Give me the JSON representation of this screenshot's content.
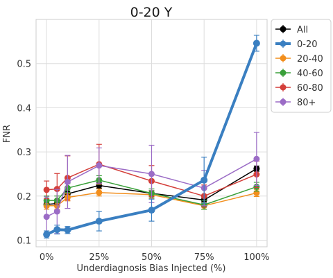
{
  "chart_data": {
    "type": "line",
    "title": "0-20 Y",
    "xlabel": "Underdiagnosis Bias Injected (%)",
    "ylabel": "FNR",
    "x": [
      0,
      5,
      10,
      25,
      50,
      75,
      100
    ],
    "x_tick_values": [
      0,
      25,
      50,
      75,
      100
    ],
    "x_tick_labels": [
      "0%",
      "25%",
      "50%",
      "75%",
      "100%"
    ],
    "xlim": [
      -5,
      105
    ],
    "ylim": [
      0.085,
      0.6
    ],
    "y_ticks": [
      0.1,
      0.2,
      0.3,
      0.4,
      0.5
    ],
    "y_tick_labels": [
      "0.1",
      "0.2",
      "0.3",
      "0.4",
      "0.5"
    ],
    "grid": true,
    "legend_position": "top-right, outside the plot area",
    "series": [
      {
        "name": "All",
        "color": "#000000",
        "emphasis": false,
        "values": [
          0.181,
          0.183,
          0.205,
          0.224,
          0.206,
          0.191,
          0.262
        ],
        "errors": [
          0.006,
          0.006,
          0.006,
          0.006,
          0.006,
          0.006,
          0.006
        ]
      },
      {
        "name": "20-40",
        "color": "#f28e1c",
        "emphasis": false,
        "values": [
          0.178,
          0.178,
          0.197,
          0.208,
          0.203,
          0.178,
          0.207
        ],
        "errors": [
          0.008,
          0.008,
          0.008,
          0.008,
          0.008,
          0.008,
          0.008
        ]
      },
      {
        "name": "40-60",
        "color": "#3aa03a",
        "emphasis": false,
        "values": [
          0.19,
          0.19,
          0.218,
          0.236,
          0.206,
          0.18,
          0.221
        ],
        "errors": [
          0.01,
          0.01,
          0.01,
          0.01,
          0.01,
          0.01,
          0.01
        ]
      },
      {
        "name": "60-80",
        "color": "#d43f3a",
        "emphasis": false,
        "values": [
          0.214,
          0.216,
          0.241,
          0.272,
          0.234,
          0.2,
          0.249
        ],
        "errors": [
          0.02,
          0.035,
          0.05,
          0.045,
          0.035,
          0.025,
          0.03
        ]
      },
      {
        "name": "80+",
        "color": "#9b6cc6",
        "emphasis": false,
        "values": [
          0.153,
          0.165,
          0.232,
          0.269,
          0.25,
          0.218,
          0.284
        ],
        "errors": [
          0.045,
          0.05,
          0.06,
          0.04,
          0.065,
          0.04,
          0.06
        ]
      },
      {
        "name": "0-20",
        "color": "#3a7fc1",
        "emphasis": true,
        "values": [
          0.113,
          0.124,
          0.123,
          0.143,
          0.168,
          0.236,
          0.546
        ],
        "errors": [
          0.008,
          0.01,
          0.008,
          0.022,
          0.025,
          0.052,
          0.018
        ]
      }
    ],
    "legend": [
      "All",
      "0-20",
      "20-40",
      "40-60",
      "60-80",
      "80+"
    ]
  }
}
